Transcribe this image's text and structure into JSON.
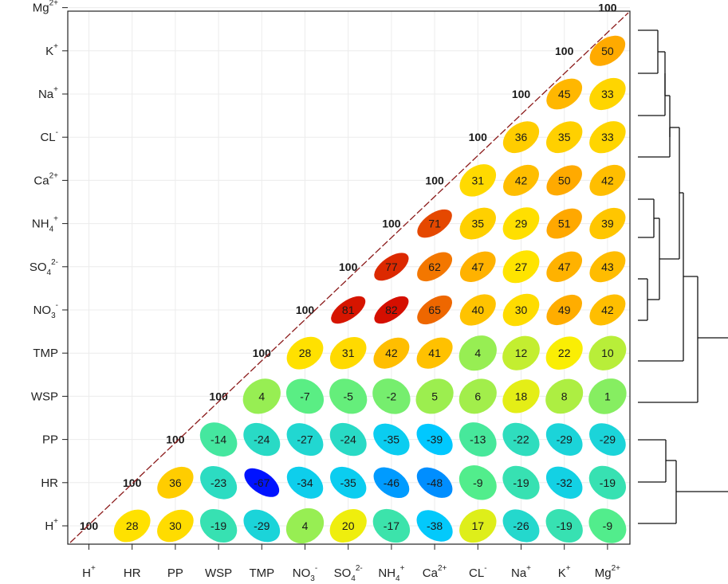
{
  "chart_data": {
    "type": "correlation_matrix",
    "variables": [
      {
        "base": "H",
        "sub": "",
        "sup": "+"
      },
      {
        "base": "HR",
        "sub": "",
        "sup": ""
      },
      {
        "base": "PP",
        "sub": "",
        "sup": ""
      },
      {
        "base": "WSP",
        "sub": "",
        "sup": ""
      },
      {
        "base": "TMP",
        "sub": "",
        "sup": ""
      },
      {
        "base": "NO",
        "sub": "3",
        "sup": "-"
      },
      {
        "base": "SO",
        "sub": "4",
        "sup": "2-"
      },
      {
        "base": "NH",
        "sub": "4",
        "sup": "+"
      },
      {
        "base": "Ca",
        "sub": "",
        "sup": "2+"
      },
      {
        "base": "CL",
        "sub": "",
        "sup": "-"
      },
      {
        "base": "Na",
        "sub": "",
        "sup": "+"
      },
      {
        "base": "K",
        "sub": "",
        "sup": "+"
      },
      {
        "base": "Mg",
        "sub": "",
        "sup": "2+"
      }
    ],
    "rows": [
      {
        "row": "H+",
        "values": [
          100,
          28,
          30,
          -19,
          -29,
          4,
          20,
          -17,
          -38,
          17,
          -26,
          -19,
          -9
        ]
      },
      {
        "row": "HR",
        "values": [
          null,
          100,
          36,
          -23,
          -67,
          -34,
          -35,
          -46,
          -48,
          -9,
          -19,
          -32,
          -19
        ]
      },
      {
        "row": "PP",
        "values": [
          null,
          null,
          100,
          -14,
          -24,
          -27,
          -24,
          -35,
          -39,
          -13,
          -22,
          -29,
          -29
        ]
      },
      {
        "row": "WSP",
        "values": [
          null,
          null,
          null,
          100,
          4,
          -7,
          -5,
          -2,
          5,
          6,
          18,
          8,
          1
        ]
      },
      {
        "row": "TMP",
        "values": [
          null,
          null,
          null,
          null,
          100,
          28,
          31,
          42,
          41,
          4,
          12,
          22,
          10
        ]
      },
      {
        "row": "NO3-",
        "values": [
          null,
          null,
          null,
          null,
          null,
          100,
          81,
          82,
          65,
          40,
          30,
          49,
          42
        ]
      },
      {
        "row": "SO42-",
        "values": [
          null,
          null,
          null,
          null,
          null,
          null,
          100,
          77,
          62,
          47,
          27,
          47,
          43
        ]
      },
      {
        "row": "NH4+",
        "values": [
          null,
          null,
          null,
          null,
          null,
          null,
          null,
          100,
          71,
          35,
          29,
          51,
          39
        ]
      },
      {
        "row": "Ca2+",
        "values": [
          null,
          null,
          null,
          null,
          null,
          null,
          null,
          null,
          100,
          31,
          42,
          50,
          42
        ]
      },
      {
        "row": "CL-",
        "values": [
          null,
          null,
          null,
          null,
          null,
          null,
          null,
          null,
          null,
          100,
          36,
          35,
          33
        ]
      },
      {
        "row": "Na+",
        "values": [
          null,
          null,
          null,
          null,
          null,
          null,
          null,
          null,
          null,
          null,
          100,
          45,
          33
        ]
      },
      {
        "row": "K+",
        "values": [
          null,
          null,
          null,
          null,
          null,
          null,
          null,
          null,
          null,
          null,
          null,
          100,
          50
        ]
      },
      {
        "row": "Mg2+",
        "values": [
          null,
          null,
          null,
          null,
          null,
          null,
          null,
          null,
          null,
          null,
          null,
          null,
          100
        ]
      }
    ],
    "color_scale": [
      "#0000ff",
      "#00c8ff",
      "#55ee88",
      "#ffee00",
      "#ffa000",
      "#d00000"
    ],
    "diagonal_line_color": "#8b1a1a",
    "dendrogram": "hierarchical clustering of variables (right side)"
  }
}
